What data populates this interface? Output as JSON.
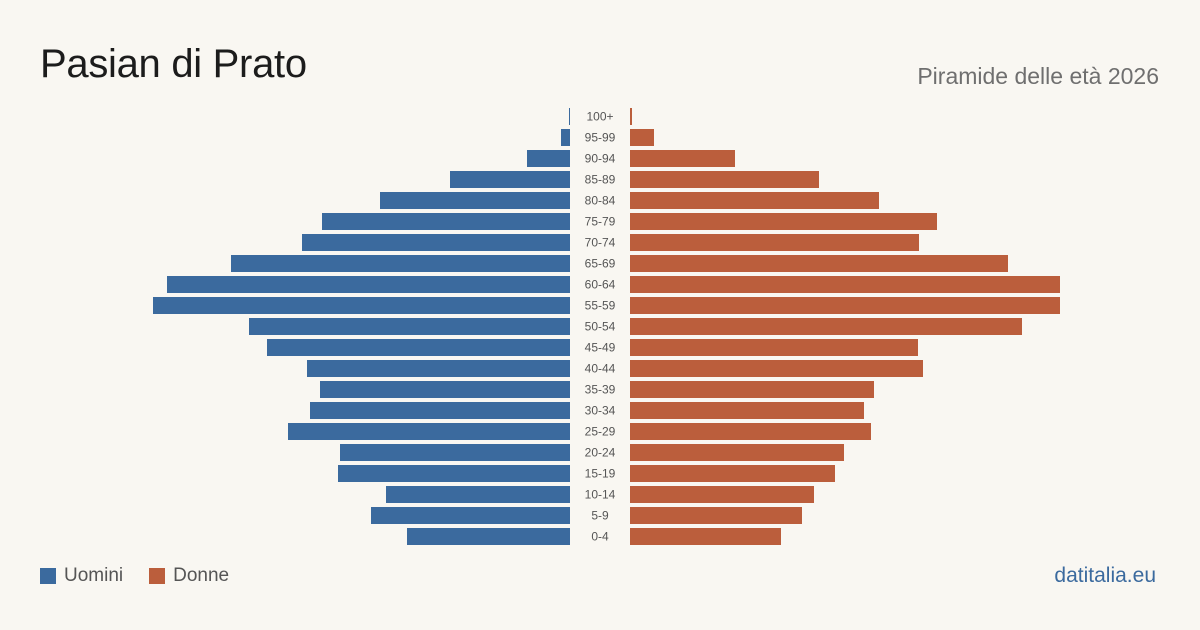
{
  "header": {
    "title": "Pasian di Prato",
    "subtitle": "Piramide delle età 2026"
  },
  "legend": {
    "men_label": "Uomini",
    "women_label": "Donne"
  },
  "brand": "datitalia.eu",
  "colors": {
    "men": "#3b6a9e",
    "women": "#bb5e3c",
    "background": "#f9f7f2",
    "age_label": "#555555"
  },
  "chart_data": {
    "type": "bar",
    "orientation": "horizontal-pyramid",
    "title": "Pasian di Prato",
    "subtitle": "Piramide delle età 2026",
    "categories": [
      "100+",
      "95-99",
      "90-94",
      "85-89",
      "80-84",
      "75-79",
      "70-74",
      "65-69",
      "60-64",
      "55-59",
      "50-54",
      "45-49",
      "40-44",
      "35-39",
      "30-34",
      "25-29",
      "20-24",
      "15-19",
      "10-14",
      "5-9",
      "0-4"
    ],
    "series": [
      {
        "name": "Uomini",
        "values": [
          1,
          9,
          43,
          120,
          190,
          248,
          268,
          339,
          403,
          417,
          321,
          303,
          263,
          250,
          260,
          282,
          230,
          232,
          184,
          199,
          163
        ]
      },
      {
        "name": "Donne",
        "values": [
          2,
          24,
          105,
          189,
          249,
          307,
          289,
          378,
          430,
          430,
          392,
          288,
          293,
          244,
          234,
          241,
          214,
          205,
          184,
          172,
          151
        ]
      }
    ],
    "legend_position": "bottom-left",
    "grid": false
  }
}
